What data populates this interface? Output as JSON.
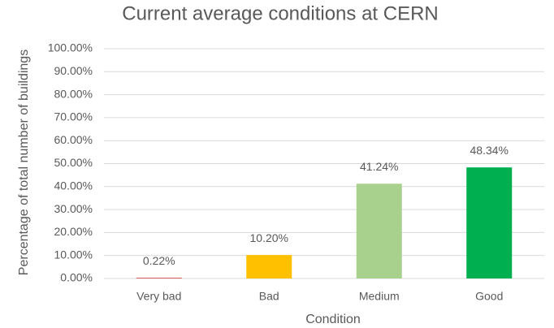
{
  "chart_data": {
    "type": "bar",
    "title": "Current average conditions at CERN",
    "xlabel": "Condition",
    "ylabel": "Percentage of total number of buildings",
    "categories": [
      "Very bad",
      "Bad",
      "Medium",
      "Good"
    ],
    "values": [
      0.22,
      10.2,
      41.24,
      48.34
    ],
    "value_labels": [
      "0.22%",
      "10.20%",
      "41.24%",
      "48.34%"
    ],
    "colors": [
      "#c00000",
      "#ffc000",
      "#a9d18e",
      "#00b050"
    ],
    "ylim": [
      0,
      100
    ],
    "yticks": [
      {
        "value": 0,
        "label": "0.00%"
      },
      {
        "value": 10,
        "label": "10.00%"
      },
      {
        "value": 20,
        "label": "20.00%"
      },
      {
        "value": 30,
        "label": "30.00%"
      },
      {
        "value": 40,
        "label": "40.00%"
      },
      {
        "value": 50,
        "label": "50.00%"
      },
      {
        "value": 60,
        "label": "60.00%"
      },
      {
        "value": 70,
        "label": "70.00%"
      },
      {
        "value": 80,
        "label": "80.00%"
      },
      {
        "value": 90,
        "label": "90.00%"
      },
      {
        "value": 100,
        "label": "100.00%"
      }
    ],
    "grid": true
  }
}
